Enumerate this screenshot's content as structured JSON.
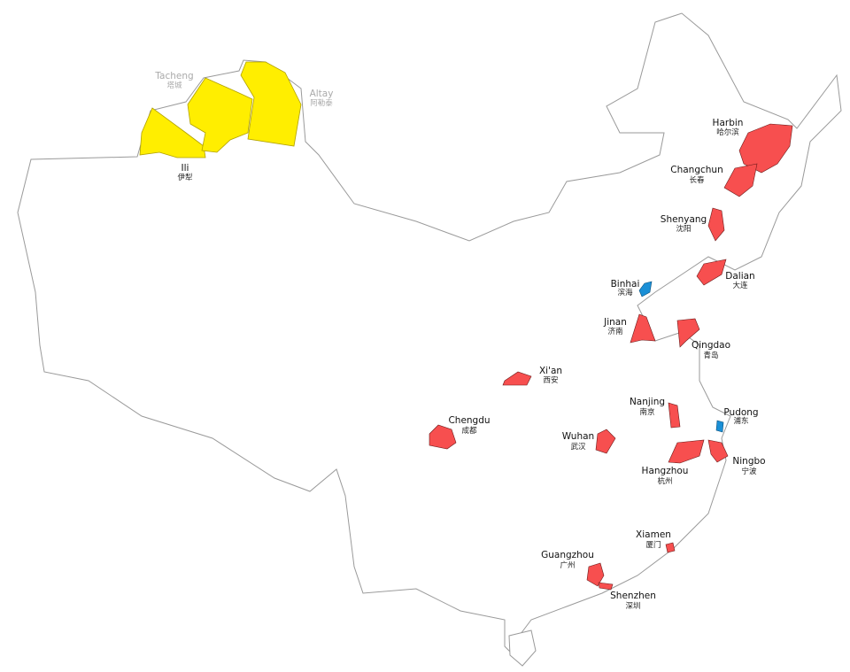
{
  "colors": {
    "city_fill": "#f74f4f",
    "new_area_fill": "#1a8fd6",
    "xinjiang_fill": "#ffee00",
    "border": "#9a9a9a"
  },
  "labels": {
    "tacheng": {
      "en": "Tacheng",
      "zh": "塔城"
    },
    "altay": {
      "en": "Altay",
      "zh": "阿勒泰"
    },
    "ili": {
      "en": "Ili",
      "zh": "伊犁"
    },
    "harbin": {
      "en": "Harbin",
      "zh": "哈尔滨"
    },
    "changchun": {
      "en": "Changchun",
      "zh": "长春"
    },
    "shenyang": {
      "en": "Shenyang",
      "zh": "沈阳"
    },
    "dalian": {
      "en": "Dalian",
      "zh": "大连"
    },
    "binhai": {
      "en": "Binhai",
      "zh": "滨海"
    },
    "jinan": {
      "en": "Jinan",
      "zh": "济南"
    },
    "qingdao": {
      "en": "Qingdao",
      "zh": "青岛"
    },
    "xian": {
      "en": "Xi'an",
      "zh": "西安"
    },
    "chengdu": {
      "en": "Chengdu",
      "zh": "成都"
    },
    "nanjing": {
      "en": "Nanjing",
      "zh": "南京"
    },
    "pudong": {
      "en": "Pudong",
      "zh": "浦东"
    },
    "wuhan": {
      "en": "Wuhan",
      "zh": "武汉"
    },
    "hangzhou": {
      "en": "Hangzhou",
      "zh": "杭州"
    },
    "ningbo": {
      "en": "Ningbo",
      "zh": "宁波"
    },
    "xiamen": {
      "en": "Xiamen",
      "zh": "厦门"
    },
    "guangzhou": {
      "en": "Guangzhou",
      "zh": "广州"
    },
    "shenzhen": {
      "en": "Shenzhen",
      "zh": "深圳"
    }
  }
}
